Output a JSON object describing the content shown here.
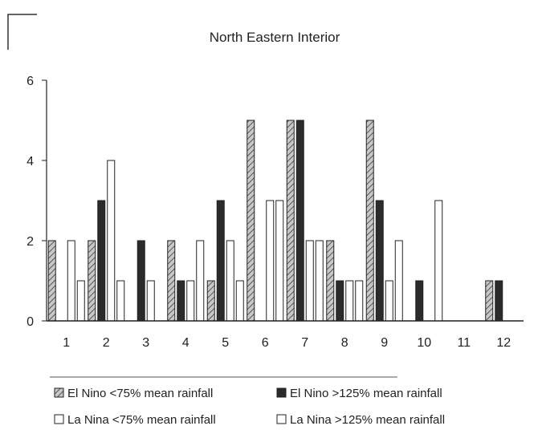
{
  "chart_data": {
    "type": "bar",
    "title": "North Eastern Interior",
    "xlabel": "",
    "ylabel": "",
    "categories": [
      "1",
      "2",
      "3",
      "4",
      "5",
      "6",
      "7",
      "8",
      "9",
      "10",
      "11",
      "12"
    ],
    "y_ticks": [
      "0",
      "2",
      "4",
      "6"
    ],
    "ylim": [
      0,
      6
    ],
    "grid": false,
    "legend_position": "bottom",
    "series": [
      {
        "name": "El Nino <75% mean rainfall",
        "values": [
          2,
          2,
          0,
          2,
          1,
          5,
          5,
          2,
          5,
          0,
          0,
          1
        ],
        "color": "#9a9a9a",
        "pattern": "hatch"
      },
      {
        "name": "El Nino >125% mean rainfall",
        "values": [
          0,
          3,
          2,
          1,
          3,
          0,
          5,
          1,
          3,
          1,
          0,
          1
        ],
        "color": "#2b2b2b",
        "pattern": "solid"
      },
      {
        "name": "La Nina <75% mean rainfall",
        "values": [
          2,
          4,
          1,
          1,
          2,
          3,
          2,
          1,
          1,
          0,
          0,
          0
        ],
        "color": "#ffffff",
        "pattern": "open"
      },
      {
        "name": "La Nina >125% mean rainfall",
        "values": [
          1,
          1,
          0,
          2,
          1,
          3,
          2,
          1,
          2,
          3,
          0,
          0
        ],
        "color": "#ffffff",
        "pattern": "open"
      }
    ]
  }
}
